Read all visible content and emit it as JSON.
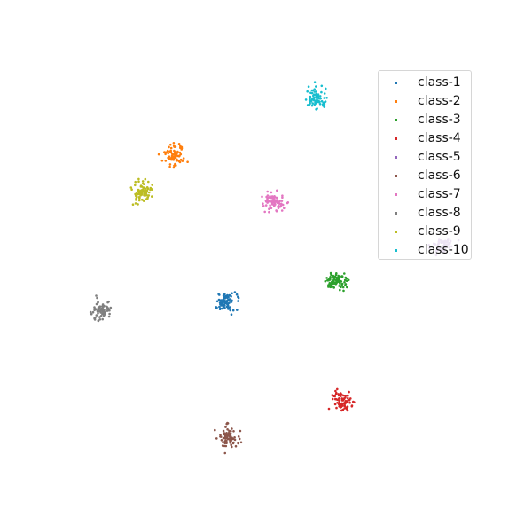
{
  "chart_data": {
    "type": "scatter",
    "title": "",
    "xlabel": "",
    "ylabel": "",
    "axes_visible": false,
    "grid": false,
    "legend": {
      "placement": "upper-right"
    },
    "series": [
      {
        "name": "class-1",
        "color": "#1f77b4",
        "center": [
          255,
          340
        ],
        "spread": [
          11,
          9
        ],
        "count": 80
      },
      {
        "name": "class-2",
        "color": "#ff7f0e",
        "center": [
          197,
          175
        ],
        "spread": [
          10,
          12
        ],
        "count": 80
      },
      {
        "name": "class-3",
        "color": "#2ca02c",
        "center": [
          379,
          318
        ],
        "spread": [
          11,
          9
        ],
        "count": 80
      },
      {
        "name": "class-4",
        "color": "#d62728",
        "center": [
          386,
          452
        ],
        "spread": [
          10,
          10
        ],
        "count": 80
      },
      {
        "name": "class-5",
        "color": "#9467bd",
        "center": [
          500,
          276
        ],
        "spread": [
          12,
          8
        ],
        "count": 60
      },
      {
        "name": "class-6",
        "color": "#8c564b",
        "center": [
          256,
          493
        ],
        "spread": [
          10,
          11
        ],
        "count": 80
      },
      {
        "name": "class-7",
        "color": "#e377c2",
        "center": [
          309,
          228
        ],
        "spread": [
          11,
          9
        ],
        "count": 80
      },
      {
        "name": "class-8",
        "color": "#7f7f7f",
        "center": [
          115,
          350
        ],
        "spread": [
          10,
          10
        ],
        "count": 70
      },
      {
        "name": "class-9",
        "color": "#bcbd22",
        "center": [
          159,
          215
        ],
        "spread": [
          11,
          10
        ],
        "count": 80
      },
      {
        "name": "class-10",
        "color": "#17becf",
        "center": [
          357,
          111
        ],
        "spread": [
          10,
          10
        ],
        "count": 80
      }
    ]
  }
}
